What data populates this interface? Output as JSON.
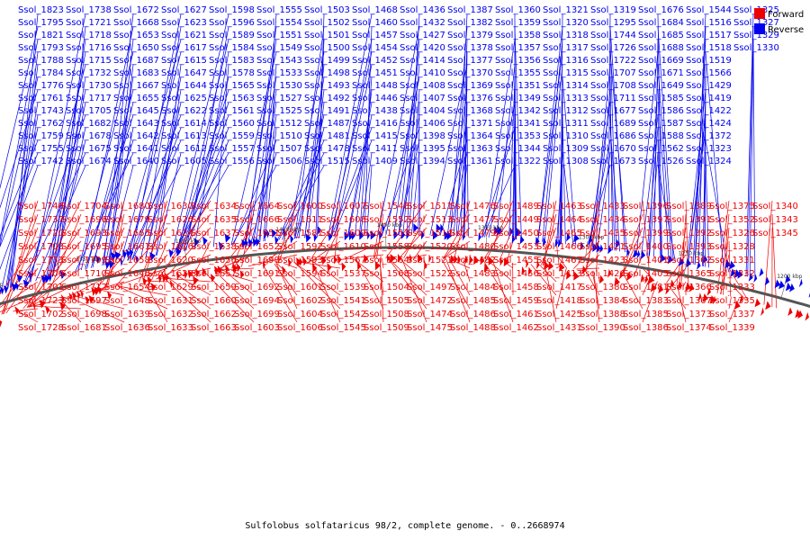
{
  "caption": "Sulfolobus solfataricus 98/2, complete genome. - 0..2668974",
  "legend": [
    {
      "label": "Forward",
      "color": "#ee0000"
    },
    {
      "label": "Reverse",
      "color": "#0000ee"
    }
  ],
  "colors": {
    "forward": "#ee0000",
    "reverse": "#0000ee",
    "backbone": "#555555"
  },
  "axis_ticks": [
    "1600 kbp",
    "1550 kbp",
    "1500 kbp",
    "1450 kbp",
    "1400 kbp",
    "1350 kbp",
    "1300 kbp",
    "1250 kbp",
    "1200 kbp"
  ],
  "reverse_labels": [
    "Ssol_1823",
    "Ssol_1795",
    "Ssol_1821",
    "Ssol_1793",
    "Ssol_1788",
    "Ssol_1784",
    "Ssol_1776",
    "Ssol_1761",
    "Ssol_1743",
    "Ssol_1762",
    "Ssol_1759",
    "Ssol_1755",
    "Ssol_1742",
    "Ssol_1738",
    "Ssol_1721",
    "Ssol_1718",
    "Ssol_1716",
    "Ssol_1715",
    "Ssol_1732",
    "Ssol_1730",
    "Ssol_1717",
    "Ssol_1705",
    "Ssol_1682",
    "Ssol_1678",
    "Ssol_1675",
    "Ssol_1674",
    "Ssol_1672",
    "Ssol_1668",
    "Ssol_1653",
    "Ssol_1650",
    "Ssol_1687",
    "Ssol_1683",
    "Ssol_1667",
    "Ssol_1655",
    "Ssol_1645",
    "Ssol_1643",
    "Ssol_1642",
    "Ssol_1641",
    "Ssol_1640",
    "Ssol_1627",
    "Ssol_1623",
    "Ssol_1621",
    "Ssol_1617",
    "Ssol_1615",
    "Ssol_1647",
    "Ssol_1644",
    "Ssol_1625",
    "Ssol_1622",
    "Ssol_1614",
    "Ssol_1613",
    "Ssol_1612",
    "Ssol_1605",
    "Ssol_1598",
    "Ssol_1596",
    "Ssol_1589",
    "Ssol_1584",
    "Ssol_1583",
    "Ssol_1578",
    "Ssol_1565",
    "Ssol_1563",
    "Ssol_1561",
    "Ssol_1560",
    "Ssol_1559",
    "Ssol_1557",
    "Ssol_1556",
    "Ssol_1555",
    "Ssol_1554",
    "Ssol_1551",
    "Ssol_1549",
    "Ssol_1543",
    "Ssol_1533",
    "Ssol_1530",
    "Ssol_1527",
    "Ssol_1525",
    "Ssol_1512",
    "Ssol_1510",
    "Ssol_1507",
    "Ssol_1506",
    "Ssol_1503",
    "Ssol_1502",
    "Ssol_1501",
    "Ssol_1500",
    "Ssol_1499",
    "Ssol_1498",
    "Ssol_1493",
    "Ssol_1492",
    "Ssol_1491",
    "Ssol_1487",
    "Ssol_1481",
    "Ssol_1478",
    "Ssol_1515",
    "Ssol_1468",
    "Ssol_1460",
    "Ssol_1457",
    "Ssol_1454",
    "Ssol_1452",
    "Ssol_1451",
    "Ssol_1448",
    "Ssol_1446",
    "Ssol_1438",
    "Ssol_1416",
    "Ssol_1415",
    "Ssol_1411",
    "Ssol_1409",
    "Ssol_1436",
    "Ssol_1432",
    "Ssol_1427",
    "Ssol_1420",
    "Ssol_1414",
    "Ssol_1410",
    "Ssol_1408",
    "Ssol_1407",
    "Ssol_1404",
    "Ssol_1406",
    "Ssol_1398",
    "Ssol_1395",
    "Ssol_1394",
    "Ssol_1387",
    "Ssol_1382",
    "Ssol_1379",
    "Ssol_1378",
    "Ssol_1377",
    "Ssol_1370",
    "Ssol_1369",
    "Ssol_1376",
    "Ssol_1368",
    "Ssol_1371",
    "Ssol_1364",
    "Ssol_1363",
    "Ssol_1361",
    "Ssol_1360",
    "Ssol_1359",
    "Ssol_1358",
    "Ssol_1357",
    "Ssol_1356",
    "Ssol_1355",
    "Ssol_1351",
    "Ssol_1349",
    "Ssol_1342",
    "Ssol_1341",
    "Ssol_1353",
    "Ssol_1344",
    "Ssol_1322",
    "Ssol_1321",
    "Ssol_1320",
    "Ssol_1318",
    "Ssol_1317",
    "Ssol_1316",
    "Ssol_1315",
    "Ssol_1314",
    "Ssol_1313",
    "Ssol_1312",
    "Ssol_1311",
    "Ssol_1310",
    "Ssol_1309",
    "Ssol_1308",
    "Ssol_1319",
    "Ssol_1295",
    "Ssol_1744",
    "Ssol_1726",
    "Ssol_1722",
    "Ssol_1707",
    "Ssol_1708",
    "Ssol_1711",
    "Ssol_1677",
    "Ssol_1689",
    "Ssol_1686",
    "Ssol_1670",
    "Ssol_1673",
    "Ssol_1676",
    "Ssol_1684",
    "Ssol_1685",
    "Ssol_1688",
    "Ssol_1669",
    "Ssol_1671",
    "Ssol_1649",
    "Ssol_1585",
    "Ssol_1586",
    "Ssol_1587",
    "Ssol_1588",
    "Ssol_1562",
    "Ssol_1526",
    "Ssol_1544",
    "Ssol_1516",
    "Ssol_1517",
    "Ssol_1518",
    "Ssol_1519",
    "Ssol_1566",
    "Ssol_1429",
    "Ssol_1419",
    "Ssol_1422",
    "Ssol_1424",
    "Ssol_1372",
    "Ssol_1323",
    "Ssol_1324",
    "Ssol_1325",
    "Ssol_1327",
    "Ssol_1329",
    "Ssol_1330"
  ],
  "forward_labels": [
    "Ssol_1746",
    "Ssol_1737",
    "Ssol_1720",
    "Ssol_1703",
    "Ssol_1733",
    "Ssol_1706",
    "Ssol_1701",
    "Ssol_1723",
    "Ssol_1702",
    "Ssol_1728",
    "Ssol_1704",
    "Ssol_1696",
    "Ssol_1693",
    "Ssol_1695",
    "Ssol_1709",
    "Ssol_1710",
    "Ssol_1712",
    "Ssol_1697",
    "Ssol_1698",
    "Ssol_1681",
    "Ssol_1680",
    "Ssol_1679",
    "Ssol_1665",
    "Ssol_1661",
    "Ssol_1658",
    "Ssol_1646",
    "Ssol_1654",
    "Ssol_1648",
    "Ssol_1639",
    "Ssol_1636",
    "Ssol_1630",
    "Ssol_1626",
    "Ssol_1624",
    "Ssol_1616",
    "Ssol_1620",
    "Ssol_1628",
    "Ssol_1629",
    "Ssol_1631",
    "Ssol_1632",
    "Ssol_1633",
    "Ssol_1634",
    "Ssol_1635",
    "Ssol_1637",
    "Ssol_1638",
    "Ssol_1656",
    "Ssol_1657",
    "Ssol_1659",
    "Ssol_1660",
    "Ssol_1662",
    "Ssol_1663",
    "Ssol_1664",
    "Ssol_1666",
    "Ssol_1651",
    "Ssol_1652",
    "Ssol_1690",
    "Ssol_1691",
    "Ssol_1692",
    "Ssol_1694",
    "Ssol_1699",
    "Ssol_1603",
    "Ssol_1600",
    "Ssol_1611",
    "Ssol_1581",
    "Ssol_1592",
    "Ssol_1593",
    "Ssol_1594",
    "Ssol_1601",
    "Ssol_1602",
    "Ssol_1604",
    "Ssol_1606",
    "Ssol_1607",
    "Ssol_1608",
    "Ssol_1609",
    "Ssol_1610",
    "Ssol_1567",
    "Ssol_1537",
    "Ssol_1539",
    "Ssol_1541",
    "Ssol_1542",
    "Ssol_1545",
    "Ssol_1548",
    "Ssol_1552",
    "Ssol_1553",
    "Ssol_1558",
    "Ssol_1564",
    "Ssol_1568",
    "Ssol_1504",
    "Ssol_1505",
    "Ssol_1508",
    "Ssol_1509",
    "Ssol_1511",
    "Ssol_1513",
    "Ssol_1514",
    "Ssol_1520",
    "Ssol_1521",
    "Ssol_1522",
    "Ssol_1497",
    "Ssol_1472",
    "Ssol_1474",
    "Ssol_1475",
    "Ssol_1476",
    "Ssol_1477",
    "Ssol_1479",
    "Ssol_1480",
    "Ssol_1482",
    "Ssol_1483",
    "Ssol_1484",
    "Ssol_1485",
    "Ssol_1486",
    "Ssol_1488",
    "Ssol_1489",
    "Ssol_1449",
    "Ssol_1450",
    "Ssol_1453",
    "Ssol_1455",
    "Ssol_1456",
    "Ssol_1458",
    "Ssol_1459",
    "Ssol_1461",
    "Ssol_1462",
    "Ssol_1463",
    "Ssol_1464",
    "Ssol_1465",
    "Ssol_1466",
    "Ssol_1467",
    "Ssol_1413",
    "Ssol_1417",
    "Ssol_1418",
    "Ssol_1425",
    "Ssol_1431",
    "Ssol_1433",
    "Ssol_1434",
    "Ssol_1435",
    "Ssol_1421",
    "Ssol_1423",
    "Ssol_1426",
    "Ssol_1380",
    "Ssol_1384",
    "Ssol_1388",
    "Ssol_1390",
    "Ssol_1396",
    "Ssol_1397",
    "Ssol_1399",
    "Ssol_1400",
    "Ssol_1401",
    "Ssol_1405",
    "Ssol_1381",
    "Ssol_1383",
    "Ssol_1385",
    "Ssol_1386",
    "Ssol_1389",
    "Ssol_1391",
    "Ssol_1392",
    "Ssol_1393",
    "Ssol_1362",
    "Ssol_1365",
    "Ssol_1366",
    "Ssol_1367",
    "Ssol_1373",
    "Ssol_1374",
    "Ssol_1375",
    "Ssol_1352",
    "Ssol_1326",
    "Ssol_1328",
    "Ssol_1331",
    "Ssol_1332",
    "Ssol_1333",
    "Ssol_1335",
    "Ssol_1337",
    "Ssol_1339",
    "Ssol_1340",
    "Ssol_1343",
    "Ssol_1345"
  ]
}
